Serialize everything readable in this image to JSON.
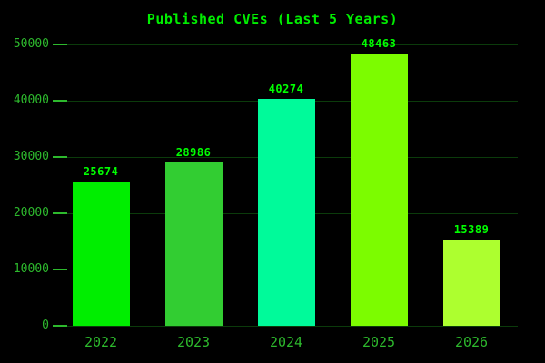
{
  "chart_data": {
    "type": "bar",
    "title": "Published CVEs (Last 5 Years)",
    "categories": [
      "2022",
      "2023",
      "2024",
      "2025",
      "2026"
    ],
    "values": [
      25674,
      28986,
      40274,
      48463,
      15389
    ],
    "bar_colors": [
      "#00ee00",
      "#32cd32",
      "#00fa9a",
      "#7cfc00",
      "#adff2f"
    ],
    "yticks": [
      0,
      10000,
      20000,
      30000,
      40000,
      50000
    ],
    "ylim": [
      0,
      50000
    ],
    "xlabel": "",
    "ylabel": "",
    "grid": "horizontal-only",
    "legend_position": "none",
    "value_labels_shown": true
  },
  "colors": {
    "background": "#000000",
    "title": "#00ee00",
    "axis_labels": "#2db92d",
    "gridline": "#0b3b0b",
    "tick": "#2db92d",
    "value_label": "#00ff00"
  }
}
